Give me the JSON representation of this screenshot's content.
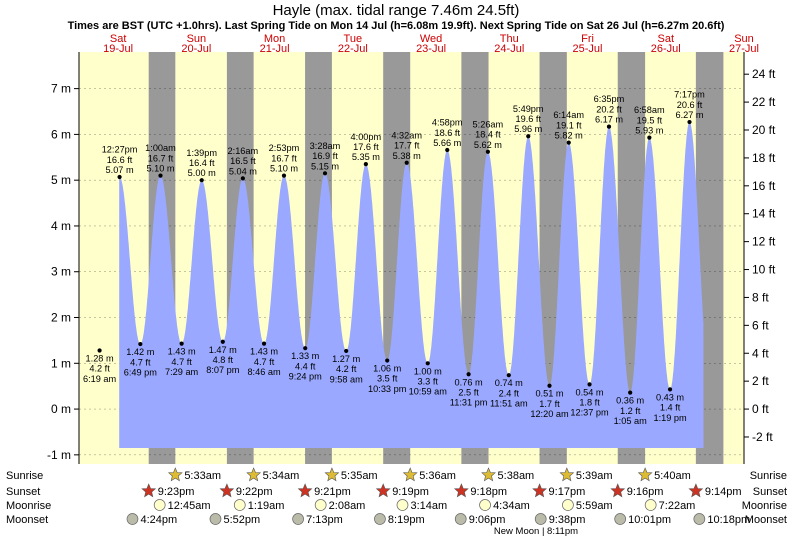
{
  "title": "Hayle (max. tidal range 7.46m 24.5ft)",
  "subtitle": "Times are BST (UTC +1.0hrs). Last Spring Tide on Mon 14 Jul (h=6.08m 19.9ft). Next Spring Tide on Sat 26 Jul (h=6.27m 20.6ft)",
  "days": [
    {
      "name": "Sat",
      "date": "19-Jul"
    },
    {
      "name": "Sun",
      "date": "20-Jul"
    },
    {
      "name": "Mon",
      "date": "21-Jul"
    },
    {
      "name": "Tue",
      "date": "22-Jul"
    },
    {
      "name": "Wed",
      "date": "23-Jul"
    },
    {
      "name": "Thu",
      "date": "24-Jul"
    },
    {
      "name": "Fri",
      "date": "25-Jul"
    },
    {
      "name": "Sat",
      "date": "26-Jul"
    },
    {
      "name": "Sun",
      "date": "27-Jul"
    }
  ],
  "chart_data": {
    "type": "area",
    "ylim_m": [
      -1.2,
      7.8
    ],
    "left_axis_ticks": [
      "-1 m",
      "0 m",
      "1 m",
      "2 m",
      "3 m",
      "4 m",
      "5 m",
      "6 m",
      "7 m"
    ],
    "right_axis_ticks": [
      "-2 ft",
      "0 ft",
      "2 ft",
      "4 ft",
      "6 ft",
      "8 ft",
      "10 ft",
      "12 ft",
      "14 ft",
      "16 ft",
      "18 ft",
      "20 ft",
      "22 ft",
      "24 ft"
    ],
    "tides": [
      {
        "type": "low",
        "day": "19-Jul",
        "time": "6:19 am",
        "m": "1.28 m",
        "ft": "4.2 ft"
      },
      {
        "type": "high",
        "day": "19-Jul",
        "time": "12:27 pm",
        "m": "5.07 m",
        "ft": "16.6 ft"
      },
      {
        "type": "low",
        "day": "19-Jul",
        "time": "6:49 pm",
        "m": "1.42 m",
        "ft": "4.7 ft"
      },
      {
        "type": "high",
        "day": "20-Jul",
        "time": "1:00 am",
        "m": "5.10 m",
        "ft": "16.7 ft"
      },
      {
        "type": "low",
        "day": "20-Jul",
        "time": "7:29 am",
        "m": "1.43 m",
        "ft": "4.7 ft"
      },
      {
        "type": "high",
        "day": "20-Jul",
        "time": "1:39 pm",
        "m": "5.00 m",
        "ft": "16.4 ft"
      },
      {
        "type": "low",
        "day": "20-Jul",
        "time": "8:07 pm",
        "m": "1.47 m",
        "ft": "4.8 ft"
      },
      {
        "type": "high",
        "day": "21-Jul",
        "time": "2:16 am",
        "m": "5.04 m",
        "ft": "16.5 ft"
      },
      {
        "type": "low",
        "day": "21-Jul",
        "time": "8:46 am",
        "m": "1.43 m",
        "ft": "4.7 ft"
      },
      {
        "type": "high",
        "day": "21-Jul",
        "time": "2:53 pm",
        "m": "5.10 m",
        "ft": "16.7 ft"
      },
      {
        "type": "low",
        "day": "21-Jul",
        "time": "9:24 pm",
        "m": "1.33 m",
        "ft": "4.4 ft"
      },
      {
        "type": "high",
        "day": "22-Jul",
        "time": "3:28 am",
        "m": "5.15 m",
        "ft": "16.9 ft"
      },
      {
        "type": "low",
        "day": "22-Jul",
        "time": "9:58 am",
        "m": "1.27 m",
        "ft": "4.2 ft"
      },
      {
        "type": "high",
        "day": "22-Jul",
        "time": "4:00 pm",
        "m": "5.35 m",
        "ft": "17.6 ft"
      },
      {
        "type": "low",
        "day": "22-Jul",
        "time": "10:33 pm",
        "m": "1.06 m",
        "ft": "3.5 ft"
      },
      {
        "type": "high",
        "day": "23-Jul",
        "time": "4:32 am",
        "m": "5.38 m",
        "ft": "17.7 ft"
      },
      {
        "type": "low",
        "day": "23-Jul",
        "time": "10:59 am",
        "m": "1.00 m",
        "ft": "3.3 ft"
      },
      {
        "type": "high",
        "day": "23-Jul",
        "time": "4:58 pm",
        "m": "5.66 m",
        "ft": "18.6 ft"
      },
      {
        "type": "low",
        "day": "23-Jul",
        "time": "11:31 pm",
        "m": "0.76 m",
        "ft": "2.5 ft"
      },
      {
        "type": "high",
        "day": "24-Jul",
        "time": "5:26 am",
        "m": "5.62 m",
        "ft": "18.4 ft"
      },
      {
        "type": "low",
        "day": "24-Jul",
        "time": "11:51 am",
        "m": "0.74 m",
        "ft": "2.4 ft"
      },
      {
        "type": "high",
        "day": "24-Jul",
        "time": "5:49 pm",
        "m": "5.96 m",
        "ft": "19.6 ft"
      },
      {
        "type": "low",
        "day": "25-Jul",
        "time": "12:20 am",
        "m": "0.51 m",
        "ft": "1.7 ft"
      },
      {
        "type": "high",
        "day": "25-Jul",
        "time": "6:14 am",
        "m": "5.82 m",
        "ft": "19.1 ft"
      },
      {
        "type": "low",
        "day": "25-Jul",
        "time": "12:37 pm",
        "m": "0.54 m",
        "ft": "1.8 ft"
      },
      {
        "type": "high",
        "day": "25-Jul",
        "time": "6:35 pm",
        "m": "6.17 m",
        "ft": "20.2 ft"
      },
      {
        "type": "low",
        "day": "26-Jul",
        "time": "1:05 am",
        "m": "0.36 m",
        "ft": "1.2 ft"
      },
      {
        "type": "high",
        "day": "26-Jul",
        "time": "6:58 am",
        "m": "5.93 m",
        "ft": "19.5 ft"
      },
      {
        "type": "low",
        "day": "26-Jul",
        "time": "1:19 pm",
        "m": "0.43 m",
        "ft": "1.4 ft"
      },
      {
        "type": "high",
        "day": "26-Jul",
        "time": "7:17 pm",
        "m": "6.27 m",
        "ft": "20.6 ft"
      }
    ],
    "sunrise": [
      {
        "day": "20-Jul",
        "time": "5:33am"
      },
      {
        "day": "21-Jul",
        "time": "5:34am"
      },
      {
        "day": "22-Jul",
        "time": "5:35am"
      },
      {
        "day": "23-Jul",
        "time": "5:36am"
      },
      {
        "day": "24-Jul",
        "time": "5:38am"
      },
      {
        "day": "25-Jul",
        "time": "5:39am"
      },
      {
        "day": "26-Jul",
        "time": "5:40am"
      }
    ],
    "sunset": [
      {
        "day": "19-Jul",
        "time": "9:23pm"
      },
      {
        "day": "20-Jul",
        "time": "9:22pm"
      },
      {
        "day": "21-Jul",
        "time": "9:21pm"
      },
      {
        "day": "22-Jul",
        "time": "9:19pm"
      },
      {
        "day": "23-Jul",
        "time": "9:18pm"
      },
      {
        "day": "24-Jul",
        "time": "9:17pm"
      },
      {
        "day": "25-Jul",
        "time": "9:16pm"
      },
      {
        "day": "26-Jul",
        "time": "9:14pm"
      }
    ],
    "moonrise": [
      {
        "day": "20-Jul",
        "time": "12:45am"
      },
      {
        "day": "21-Jul",
        "time": "1:19am"
      },
      {
        "day": "22-Jul",
        "time": "2:08am"
      },
      {
        "day": "23-Jul",
        "time": "3:14am"
      },
      {
        "day": "24-Jul",
        "time": "4:34am"
      },
      {
        "day": "25-Jul",
        "time": "5:59am"
      },
      {
        "day": "26-Jul",
        "time": "7:22am"
      }
    ],
    "moonset": [
      {
        "day": "19-Jul",
        "time": "4:24pm"
      },
      {
        "day": "20-Jul",
        "time": "5:52pm"
      },
      {
        "day": "21-Jul",
        "time": "7:13pm"
      },
      {
        "day": "22-Jul",
        "time": "8:19pm"
      },
      {
        "day": "23-Jul",
        "time": "9:06pm"
      },
      {
        "day": "24-Jul",
        "time": "9:38pm"
      },
      {
        "day": "25-Jul",
        "time": "10:01pm"
      },
      {
        "day": "26-Jul",
        "time": "10:18pm"
      }
    ],
    "new_moon": "New Moon | 8:11pm"
  },
  "almanac_labels": {
    "sunrise": "Sunrise",
    "sunset": "Sunset",
    "moonrise": "Moonrise",
    "moonset": "Moonset"
  },
  "colors": {
    "day_bg": "#ffffcc",
    "night_bg": "#999999",
    "water": "#9aa9ff",
    "day_label": "#cc0000",
    "sun": "#ddbb33",
    "sunset": "#cc3322",
    "moon": "#ffffcc",
    "moonset": "#bbbbaa"
  }
}
